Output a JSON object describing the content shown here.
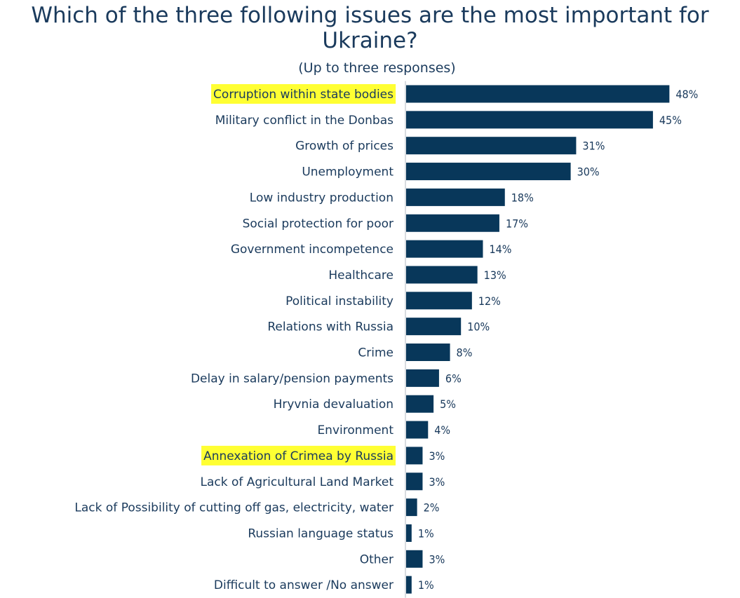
{
  "chart_data": {
    "type": "bar",
    "orientation": "horizontal",
    "title": "Which of the three following issues are the most important for Ukraine?",
    "subtitle": "(Up to three responses)",
    "bar_color": "#08375a",
    "highlight_color": "#ffff33",
    "value_suffix": "%",
    "categories": [
      "Corruption within state bodies",
      "Military conflict in the Donbas",
      "Growth of prices",
      "Unemployment",
      "Low industry production",
      "Social protection for poor",
      "Government incompetence",
      "Healthcare",
      "Political instability",
      "Relations with Russia",
      "Crime",
      "Delay in salary/pension payments",
      "Hryvnia devaluation",
      "Environment",
      "Annexation of Crimea by Russia",
      "Lack of Agricultural Land Market",
      "Lack of Possibility of cutting off gas, electricity, water",
      "Russian language status",
      "Other",
      "Difficult to answer /No answer"
    ],
    "values": [
      48,
      45,
      31,
      30,
      18,
      17,
      14,
      13,
      12,
      10,
      8,
      6,
      5,
      4,
      3,
      3,
      2,
      1,
      3,
      1
    ],
    "highlighted": [
      "Corruption within state bodies",
      "Annexation of Crimea by Russia"
    ]
  }
}
